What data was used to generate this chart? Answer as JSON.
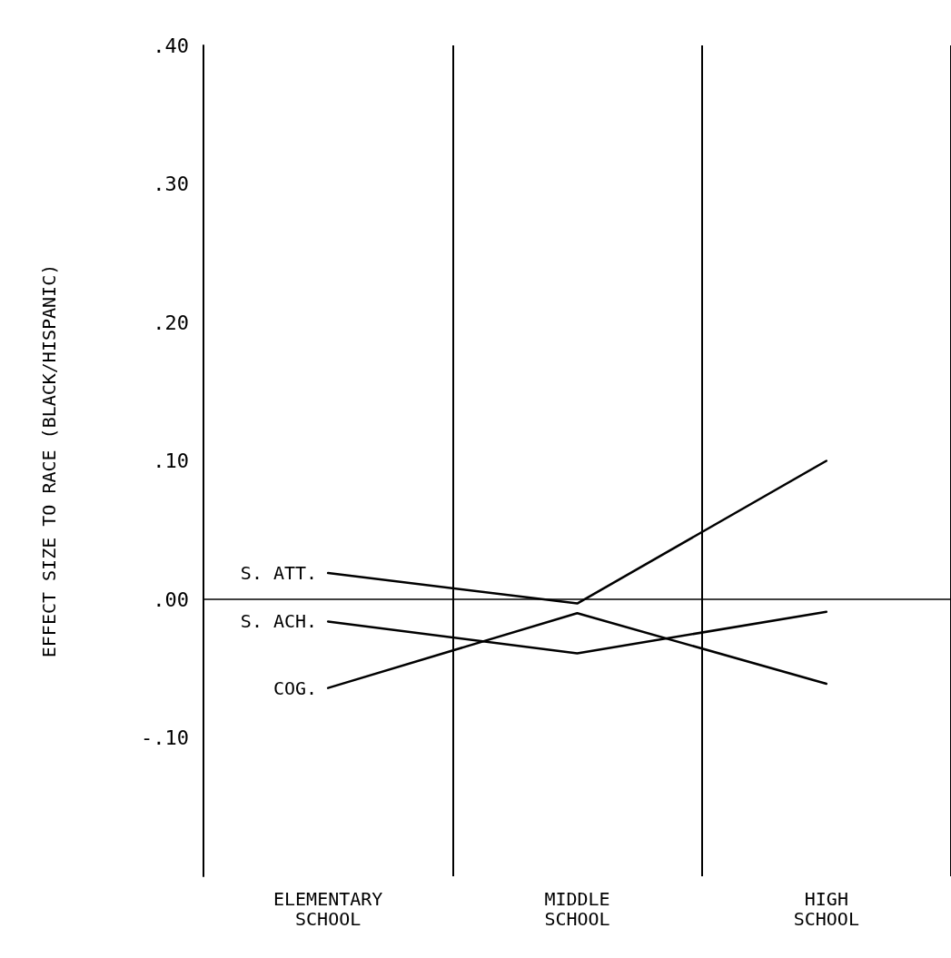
{
  "chart_data": {
    "type": "line",
    "ylabel": "EFFECT SIZE TO RACE (BLACK/HISPANIC)",
    "categories": [
      "ELEMENTARY\nSCHOOL",
      "MIDDLE\nSCHOOL",
      "HIGH\nSCHOOL"
    ],
    "series": [
      {
        "name": "S. ATT.",
        "color": "#000000",
        "values": [
          0.019,
          -0.003,
          0.1
        ]
      },
      {
        "name": "S. ACH.",
        "color": "#000000",
        "values": [
          -0.016,
          -0.039,
          -0.009
        ]
      },
      {
        "name": "COG.",
        "color": "#000000",
        "values": [
          -0.064,
          -0.01,
          -0.061
        ]
      }
    ],
    "ylim": [
      -0.2,
      0.4
    ],
    "yticks": [
      {
        "value": -0.1,
        "label": "-.10"
      },
      {
        "value": 0,
        "label": ".00"
      },
      {
        "value": 0.1,
        "label": ".10"
      },
      {
        "value": 0.2,
        "label": ".20"
      },
      {
        "value": 0.3,
        "label": ".30"
      },
      {
        "value": 0.4,
        "label": ".40"
      }
    ],
    "ref_lines": [
      {
        "axis": "y",
        "value": 0,
        "label": null,
        "color": "#000000"
      }
    ],
    "grid": "x",
    "legend": false,
    "marker": "none",
    "line_style": "solid"
  }
}
